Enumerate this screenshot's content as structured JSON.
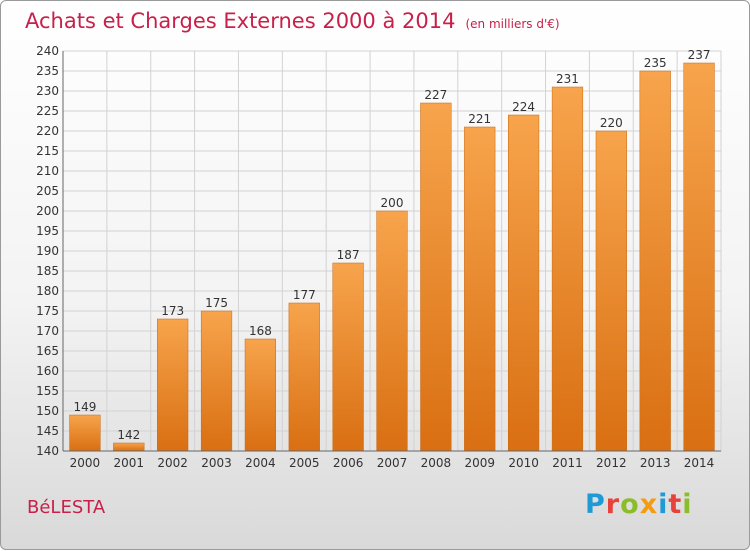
{
  "chart_data": {
    "type": "bar",
    "title": "Achats et Charges Externes 2000 à 2014",
    "subtitle": "(en milliers d'€)",
    "categories": [
      "2000",
      "2001",
      "2002",
      "2003",
      "2004",
      "2005",
      "2006",
      "2007",
      "2008",
      "2009",
      "2010",
      "2011",
      "2012",
      "2013",
      "2014"
    ],
    "values": [
      149,
      142,
      173,
      175,
      168,
      177,
      187,
      200,
      227,
      221,
      224,
      231,
      220,
      235,
      237
    ],
    "xlabel": "",
    "ylabel": "",
    "ylim": [
      140,
      240
    ],
    "yticks": [
      140,
      145,
      150,
      155,
      160,
      165,
      170,
      175,
      180,
      185,
      190,
      195,
      200,
      205,
      210,
      215,
      220,
      225,
      230,
      235,
      240
    ],
    "grid": true,
    "data_labels": true,
    "bar_color": "#f0902e"
  },
  "footer": {
    "place": "BéLESTA",
    "logo": "Proxiti"
  },
  "colors": {
    "title": "#c8204a",
    "logo_letters": [
      "#1e9ad6",
      "#e8403a",
      "#8bbd2a",
      "#f39c12",
      "#1e9ad6",
      "#e8403a",
      "#8bbd2a"
    ]
  }
}
